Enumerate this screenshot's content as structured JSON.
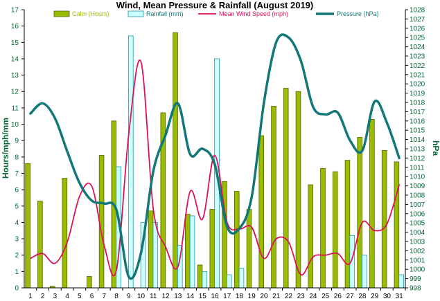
{
  "chart_data": {
    "type": "bar",
    "title": "Wind, Mean Pressure & Rainfall (August 2019)",
    "ylabel": "Hours/mph/mm",
    "y2label": "hPa",
    "ylim": [
      0,
      17
    ],
    "y2lim": [
      998,
      1028
    ],
    "grid": false,
    "legend_position": "top",
    "categories": [
      "1",
      "2",
      "3",
      "4",
      "5",
      "6",
      "7",
      "8",
      "9",
      "10",
      "11",
      "12",
      "13",
      "14",
      "15",
      "16",
      "17",
      "18",
      "19",
      "20",
      "21",
      "22",
      "23",
      "24",
      "25",
      "26",
      "27",
      "28",
      "29",
      "30",
      "31"
    ],
    "yticks": [
      "0",
      "1",
      "2",
      "3",
      "4",
      "5",
      "6",
      "7",
      "8",
      "9",
      "10",
      "11",
      "12",
      "13",
      "14",
      "15",
      "16",
      "17"
    ],
    "y2ticks": [
      "998",
      "999",
      "1000",
      "1001",
      "1002",
      "1003",
      "1004",
      "1005",
      "1006",
      "1007",
      "1008",
      "1009",
      "1010",
      "1011",
      "1012",
      "1013",
      "1014",
      "1015",
      "1016",
      "1017",
      "1018",
      "1019",
      "1020",
      "1021",
      "1022",
      "1023",
      "1024",
      "1025",
      "1026",
      "1027",
      "1028"
    ],
    "series": [
      {
        "name": "Calm (Hours)",
        "type": "bar",
        "color": "#99bb00",
        "values": [
          7.6,
          5.3,
          0.1,
          6.7,
          0,
          0.7,
          8.1,
          10.2,
          0,
          0,
          4.7,
          10.7,
          15.6,
          4.5,
          1.4,
          4.8,
          6.5,
          5.9,
          4.8,
          9.3,
          11.1,
          12.2,
          12.0,
          6.3,
          7.3,
          7.1,
          7.8,
          9.2,
          10.3,
          8.4,
          7.7
        ]
      },
      {
        "name": "Rainfall (mm)",
        "type": "bar",
        "color": "#ccffff",
        "values": [
          0,
          0,
          0,
          0,
          0,
          0,
          0,
          7.4,
          15.4,
          4.0,
          4.0,
          0,
          2.6,
          4.4,
          1.0,
          14.0,
          0.8,
          1.2,
          0,
          0,
          0,
          0,
          0,
          0,
          0,
          0,
          3.2,
          2.0,
          0,
          0,
          0.8
        ]
      },
      {
        "name": "Mean Wind Speed (mph)",
        "type": "line",
        "color": "#dd1155",
        "values": [
          1.8,
          2.1,
          1.5,
          2.8,
          5.6,
          6.2,
          2.6,
          1.1,
          9.4,
          13.8,
          4.8,
          2.5,
          1.3,
          5.9,
          4.2,
          8.1,
          4.0,
          3.6,
          3.7,
          1.8,
          3.0,
          2.8,
          0.8,
          1.9,
          2.0,
          2.1,
          1.5,
          4.0,
          3.5,
          3.9,
          6.3
        ]
      },
      {
        "name": "Pressure (hPa)",
        "type": "line",
        "color": "#117777",
        "axis": "right",
        "values": [
          1016.8,
          1017.9,
          1016.3,
          1012.7,
          1009.3,
          1007.4,
          1007.1,
          1006.4,
          999.2,
          1001.8,
          1010.6,
          1014.5,
          1017.9,
          1012.4,
          1013.0,
          1011.3,
          1004.6,
          1004.4,
          1007.8,
          1018.0,
          1024.5,
          1025.0,
          1022.5,
          1017.5,
          1016.7,
          1016.9,
          1013.9,
          1012.8,
          1018.1,
          1015.8,
          1012.0
        ]
      }
    ]
  }
}
